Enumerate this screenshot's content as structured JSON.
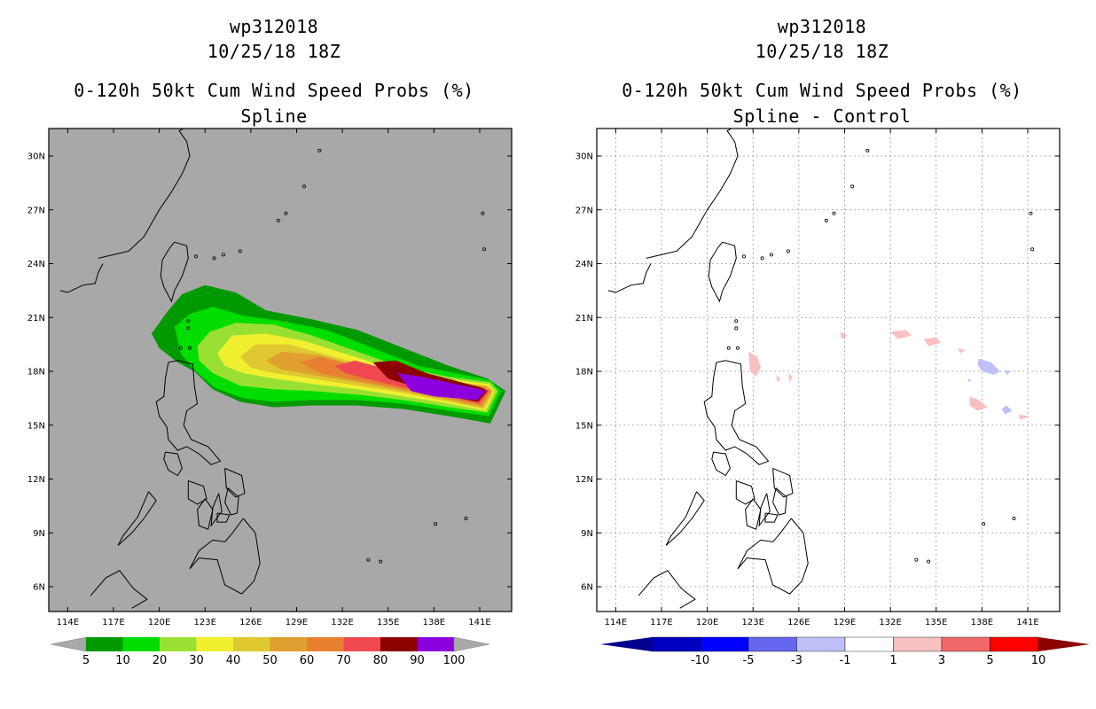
{
  "left": {
    "title_line1": "wp312018",
    "title_line2": "10/25/18 18Z",
    "title_line3": "0-120h 50kt Cum Wind Speed Probs (%)",
    "title_line4": "Spline",
    "lat_labels": [
      "6N",
      "9N",
      "12N",
      "15N",
      "18N",
      "21N",
      "24N",
      "27N",
      "30N"
    ],
    "lon_labels": [
      "114E",
      "117E",
      "120E",
      "123E",
      "126E",
      "129E",
      "132E",
      "135E",
      "138E",
      "141E"
    ],
    "colorbar": {
      "labels": [
        "5",
        "10",
        "20",
        "30",
        "40",
        "50",
        "60",
        "70",
        "80",
        "90",
        "100"
      ],
      "colors": [
        "#009900",
        "#00dd00",
        "#99e033",
        "#f0f030",
        "#e0c830",
        "#e0a030",
        "#e88030",
        "#f04850",
        "#8c0000",
        "#8c00dd"
      ],
      "end_color": "#a8a8a8"
    },
    "plume_colors": [
      "#009900",
      "#00dd00",
      "#99e033",
      "#f0f030",
      "#e0c830",
      "#e0a030",
      "#e88030",
      "#f04850",
      "#8c0000",
      "#8c00dd"
    ],
    "bg_color": "#a8a8a8"
  },
  "right": {
    "title_line1": "wp312018",
    "title_line2": "10/25/18 18Z",
    "title_line3": "0-120h 50kt Cum Wind Speed Probs (%)",
    "title_line4": "Spline - Control",
    "lat_labels": [
      "6N",
      "9N",
      "12N",
      "15N",
      "18N",
      "21N",
      "24N",
      "27N",
      "30N"
    ],
    "lon_labels": [
      "114E",
      "117E",
      "120E",
      "123E",
      "126E",
      "129E",
      "132E",
      "135E",
      "138E",
      "141E"
    ],
    "colorbar": {
      "labels": [
        "-10",
        "-5",
        "-3",
        "-1",
        "1",
        "3",
        "5",
        "10"
      ],
      "colors": [
        "#0000c0",
        "#0000ff",
        "#6666ee",
        "#c0c0f8",
        "#ffffff",
        "#f8c0c0",
        "#f06868",
        "#ff0000"
      ],
      "left_end_color": "#00008c",
      "right_end_color": "#8c0000"
    },
    "diff_colors": {
      "pos_light": "#f8c0c0",
      "neg_light": "#c0c0f8"
    },
    "bg_color": "#ffffff"
  }
}
